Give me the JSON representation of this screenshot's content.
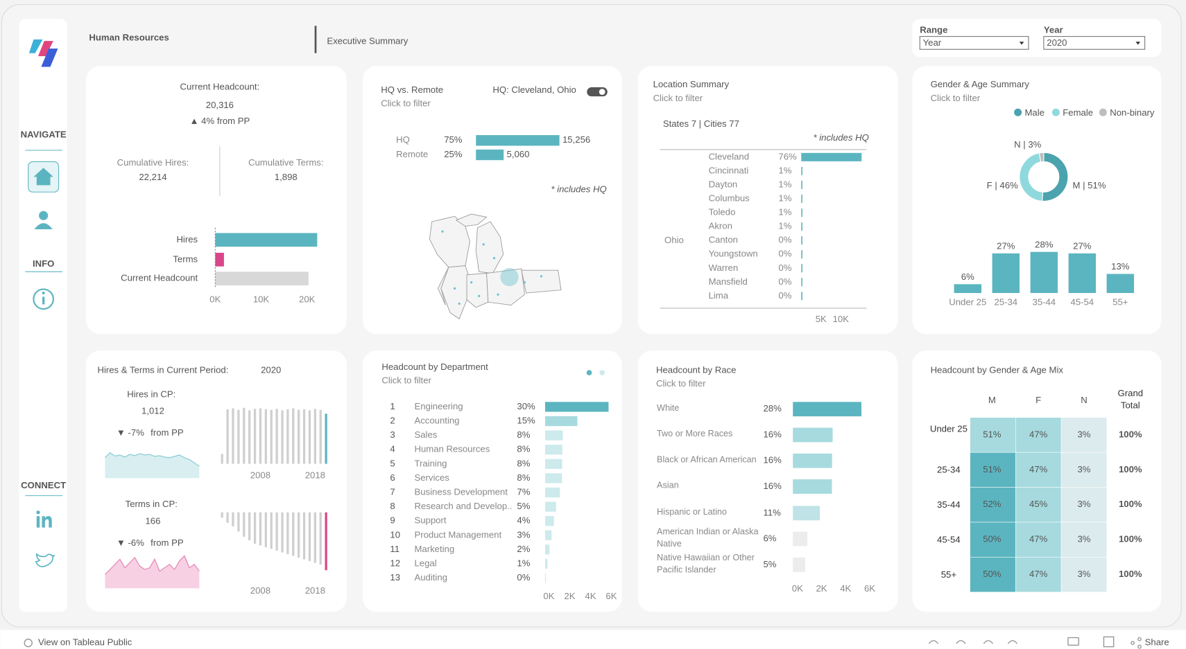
{
  "header": {
    "title": "Human Resources",
    "subtitle": "Executive Summary"
  },
  "filters": [
    {
      "label": "Range",
      "value": "Year"
    },
    {
      "label": "Year",
      "value": "2020"
    }
  ],
  "nav": {
    "navigate": "NAVIGATE",
    "info": "INFO",
    "connect": "CONNECT"
  },
  "headcount": {
    "title": "Current Headcount:",
    "value": "20,316",
    "change": "▲ 4% from PP",
    "hires_label": "Cumulative Hires:",
    "hires": "22,214",
    "terms_label": "Cumulative Terms:",
    "terms": "1,898",
    "chart": {
      "type": "bar",
      "categories": [
        "Hires",
        "Terms",
        "Current Headcount"
      ],
      "values": [
        22214,
        1898,
        20316
      ],
      "colors": [
        "#5bb5c0",
        "#d9468a",
        "#d8d8d8"
      ],
      "xlim": [
        0,
        25000
      ],
      "xticks": [
        {
          "value": 0,
          "label": "0K"
        },
        {
          "value": 10000,
          "label": "10K"
        },
        {
          "value": 20000,
          "label": "20K"
        }
      ]
    }
  },
  "hq": {
    "title": "HQ vs. Remote",
    "subtitle": "Click to filter",
    "hq_label": "HQ: Cleveland, Ohio",
    "note": "* includes HQ",
    "chart": {
      "type": "bar",
      "categories": [
        "HQ",
        "Remote"
      ],
      "shares": [
        "75%",
        "25%"
      ],
      "values": [
        15256,
        5060
      ],
      "value_labels": [
        "15,256",
        "5,060"
      ],
      "color": "#5bb5c0",
      "xlim": [
        0,
        20000
      ]
    }
  },
  "location": {
    "title": "Location Summary",
    "subtitle": "Click to filter",
    "summary": "States 7 | Cities 77",
    "note": "* includes HQ",
    "state": "Ohio",
    "chart": {
      "type": "bar",
      "categories": [
        "Cleveland",
        "Cincinnati",
        "Dayton",
        "Columbus",
        "Toledo",
        "Akron",
        "Canton",
        "Youngstown",
        "Warren",
        "Mansfield",
        "Lima"
      ],
      "shares": [
        "76%",
        "1%",
        "1%",
        "1%",
        "1%",
        "1%",
        "0%",
        "0%",
        "0%",
        "0%",
        "0%"
      ],
      "values": [
        15256,
        230,
        220,
        210,
        200,
        190,
        90,
        80,
        70,
        60,
        50
      ],
      "color": "#5bb5c0",
      "xlim": [
        0,
        16000
      ],
      "xticks": [
        {
          "value": 5000,
          "label": "5K"
        },
        {
          "value": 10000,
          "label": "10K"
        }
      ]
    }
  },
  "gender_age": {
    "title": "Gender & Age Summary",
    "subtitle": "Click to filter",
    "donut": {
      "type": "pie",
      "series": [
        {
          "name": "Male",
          "color": "#4aa3ad"
        },
        {
          "name": "Female",
          "color": "#8fd9de"
        },
        {
          "name": "Non-binary",
          "color": "#bdbdbd"
        }
      ],
      "values": [
        51,
        46,
        3
      ],
      "value_labels": [
        "M | 51%",
        "F | 46%",
        "N | 3%"
      ]
    },
    "ages": {
      "type": "bar",
      "categories": [
        "Under 25",
        "25-34",
        "35-44",
        "45-54",
        "55+"
      ],
      "values": [
        6,
        27,
        28,
        27,
        13
      ],
      "value_labels": [
        "6%",
        "27%",
        "28%",
        "27%",
        "13%"
      ],
      "color": "#5bb5c0",
      "ylim": [
        0,
        30
      ]
    }
  },
  "period": {
    "title": "Hires & Terms in Current Period:",
    "year": "2020",
    "xticks": [
      2008,
      2018
    ],
    "hires": {
      "label": "Hires in CP:",
      "value": "1,012",
      "change": "▼ -7%",
      "from": "from PP",
      "color": "#5bb5c0",
      "bars": {
        "type": "bar",
        "x": [
          2001,
          2002,
          2003,
          2004,
          2005,
          2006,
          2007,
          2008,
          2009,
          2010,
          2011,
          2012,
          2013,
          2014,
          2015,
          2016,
          2017,
          2018,
          2019,
          2020
        ],
        "values": [
          200,
          1100,
          1120,
          1090,
          1130,
          1080,
          1110,
          1120,
          1100,
          1090,
          1110,
          1080,
          1100,
          1120,
          1090,
          1100,
          1080,
          1110,
          1090,
          1012
        ],
        "ylim": [
          0,
          1150
        ]
      },
      "area": {
        "type": "area",
        "values": [
          60,
          75,
          65,
          68,
          62,
          70,
          66,
          72,
          68,
          70,
          64,
          66,
          62,
          60,
          64,
          68,
          60,
          55,
          45,
          35
        ],
        "ylim": [
          0,
          100
        ]
      }
    },
    "terms": {
      "label": "Terms in CP:",
      "value": "166",
      "change": "▼ -6%",
      "from": "from PP",
      "color": "#d9468a",
      "bars": {
        "type": "bar",
        "x": [
          2001,
          2002,
          2003,
          2004,
          2005,
          2006,
          2007,
          2008,
          2009,
          2010,
          2011,
          2012,
          2013,
          2014,
          2015,
          2016,
          2017,
          2018,
          2019,
          2020
        ],
        "values": [
          15,
          30,
          40,
          55,
          70,
          80,
          90,
          95,
          100,
          105,
          110,
          115,
          120,
          125,
          130,
          135,
          140,
          145,
          150,
          166
        ],
        "ylim": [
          0,
          170
        ]
      },
      "area": {
        "type": "area",
        "values": [
          40,
          55,
          70,
          85,
          60,
          75,
          90,
          65,
          55,
          60,
          85,
          50,
          60,
          70,
          55,
          80,
          95,
          60,
          70,
          50
        ],
        "ylim": [
          0,
          100
        ]
      }
    }
  },
  "department": {
    "title": "Headcount by Department",
    "subtitle": "Click to filter",
    "chart": {
      "type": "bar",
      "ranks": [
        1,
        2,
        3,
        4,
        5,
        6,
        7,
        8,
        9,
        10,
        11,
        12,
        13
      ],
      "categories": [
        "Engineering",
        "Accounting",
        "Sales",
        "Human Resources",
        "Training",
        "Services",
        "Business Development",
        "Research and Develop..",
        "Support",
        "Product Management",
        "Marketing",
        "Legal",
        "Auditing"
      ],
      "shares": [
        "30%",
        "15%",
        "8%",
        "8%",
        "8%",
        "8%",
        "7%",
        "5%",
        "4%",
        "3%",
        "2%",
        "1%",
        "0%"
      ],
      "values": [
        6095,
        3100,
        1700,
        1650,
        1640,
        1620,
        1420,
        1050,
        850,
        620,
        420,
        230,
        60
      ],
      "colors": [
        "#5bb5c0",
        "#a6dade",
        "#cdeaec"
      ],
      "xlim": [
        0,
        6500
      ],
      "xticks": [
        {
          "value": 0,
          "label": "0K"
        },
        {
          "value": 2000,
          "label": "2K"
        },
        {
          "value": 4000,
          "label": "4K"
        },
        {
          "value": 6000,
          "label": "6K"
        }
      ]
    }
  },
  "race": {
    "title": "Headcount by Race",
    "subtitle": "Click to filter",
    "chart": {
      "type": "bar",
      "categories": [
        "White",
        "Two or More Races",
        "Black or African American",
        "Asian",
        "Hispanic or Latino",
        "American Indian or Alaska Native",
        "Native Hawaiian or Other Pacific Islander"
      ],
      "shares": [
        "28%",
        "16%",
        "16%",
        "16%",
        "11%",
        "6%",
        "5%"
      ],
      "values": [
        5688,
        3300,
        3250,
        3240,
        2235,
        1200,
        1020
      ],
      "colors": [
        "#5bb5c0",
        "#a6dade",
        "#a6dade",
        "#a6dade",
        "#bfe3e6",
        "#ececec",
        "#ececec"
      ],
      "xlim": [
        0,
        6500
      ],
      "xticks": [
        {
          "value": 0,
          "label": "0K"
        },
        {
          "value": 2000,
          "label": "2K"
        },
        {
          "value": 4000,
          "label": "4K"
        },
        {
          "value": 6000,
          "label": "6K"
        }
      ]
    }
  },
  "mix": {
    "title": "Headcount by Gender & Age Mix",
    "columns": [
      "M",
      "F",
      "N",
      "Grand Total"
    ],
    "rows": [
      {
        "label": "Under 25",
        "cells": [
          "51%",
          "47%",
          "3%",
          "100%"
        ],
        "colors": [
          "#a6dade",
          "#a6dade",
          "#dcebed"
        ]
      },
      {
        "label": "25-34",
        "cells": [
          "51%",
          "47%",
          "3%",
          "100%"
        ],
        "colors": [
          "#5bb5c0",
          "#a6dade",
          "#dcebed"
        ]
      },
      {
        "label": "35-44",
        "cells": [
          "52%",
          "45%",
          "3%",
          "100%"
        ],
        "colors": [
          "#5bb5c0",
          "#a6dade",
          "#dcebed"
        ]
      },
      {
        "label": "45-54",
        "cells": [
          "50%",
          "47%",
          "3%",
          "100%"
        ],
        "colors": [
          "#5bb5c0",
          "#a6dade",
          "#dcebed"
        ]
      },
      {
        "label": "55+",
        "cells": [
          "50%",
          "47%",
          "3%",
          "100%"
        ],
        "colors": [
          "#5bb5c0",
          "#a6dade",
          "#dcebed"
        ]
      }
    ]
  },
  "footer": {
    "link": "View on Tableau Public",
    "share": "Share"
  }
}
